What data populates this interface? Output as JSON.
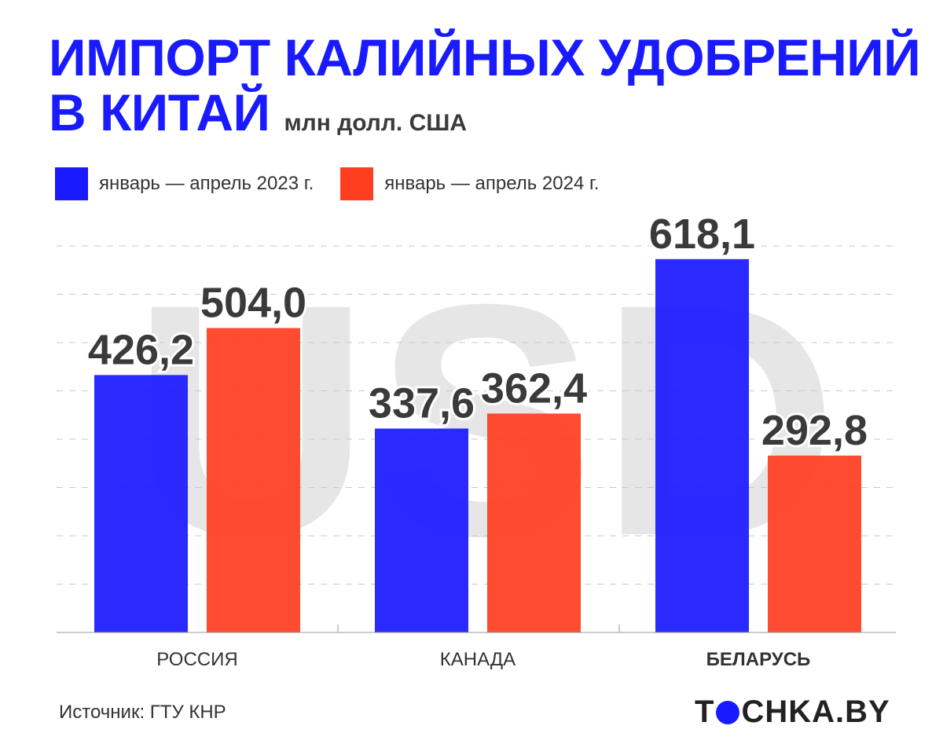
{
  "title_line1": "ИМПОРТ КАЛИЙНЫХ УДОБРЕНИЙ",
  "title_line2": "В КИТАЙ",
  "units": "млн долл. США",
  "watermark": "USD",
  "source": "Источник: ГТУ КНР",
  "logo": {
    "left": "T",
    "right": "CHKA.BY"
  },
  "colors": {
    "series_2023": "#1a1aff",
    "series_2024": "#ff3d1f",
    "title": "#1a1aff",
    "watermark": "#e6e6e6"
  },
  "chart_data": {
    "type": "bar",
    "categories": [
      "РОССИЯ",
      "КАНАДА",
      "БЕЛАРУСЬ"
    ],
    "highlight_category": "БЕЛАРУСЬ",
    "series": [
      {
        "name": "январь — апрель 2023 г.",
        "values": [
          426.2,
          337.6,
          618.1
        ],
        "labels": [
          "426,2",
          "337,6",
          "618,1"
        ]
      },
      {
        "name": "январь — апрель 2024 г.",
        "values": [
          504.0,
          362.4,
          292.8
        ],
        "labels": [
          "504,0",
          "362,4",
          "292,8"
        ]
      }
    ],
    "ylim": [
      0,
      650
    ],
    "grid": true,
    "legend": "top-left"
  }
}
